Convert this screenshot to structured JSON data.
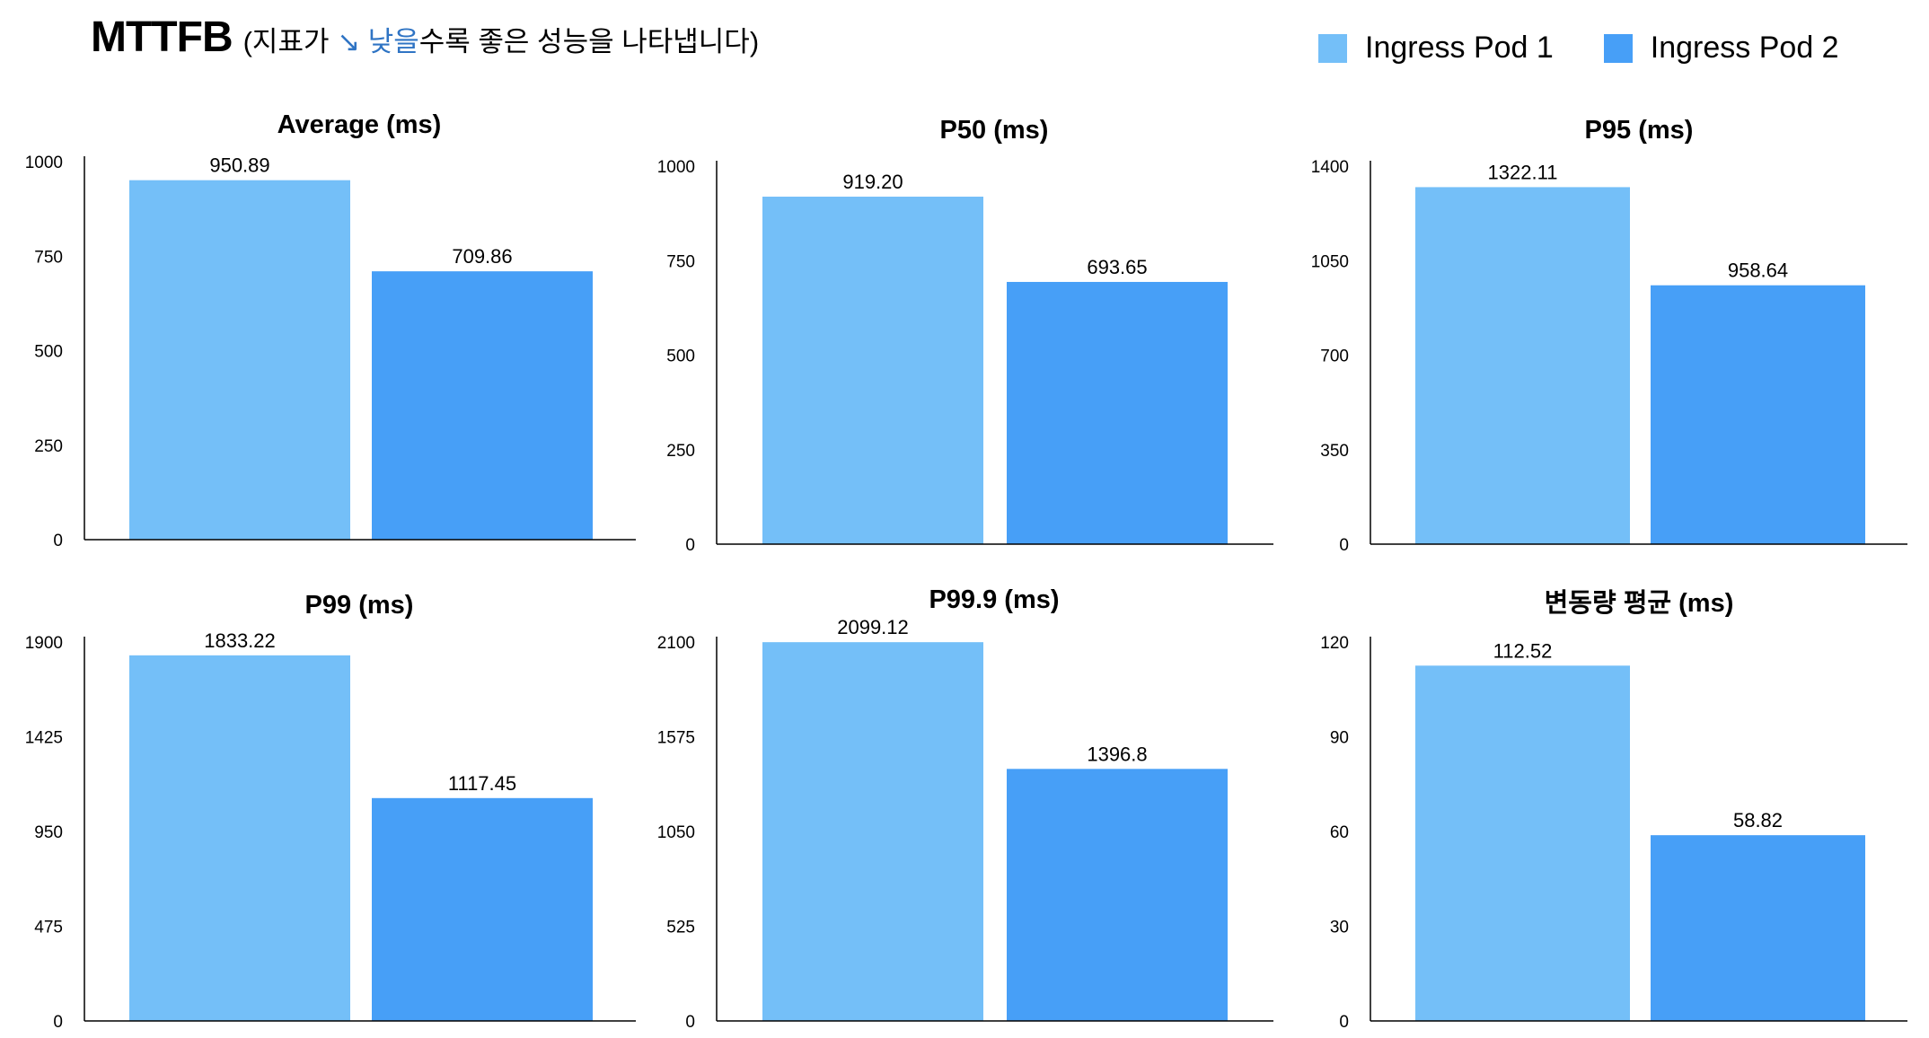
{
  "header": {
    "title": "MTTFB",
    "subtitle_before": "(지표가 ",
    "subtitle_accent": "↘ 낮을",
    "subtitle_after": "수록 좋은 성능을 나타냅니다)"
  },
  "legend": [
    {
      "label": "Ingress Pod 1",
      "color": "#74bff8"
    },
    {
      "label": "Ingress Pod 2",
      "color": "#479ff7"
    }
  ],
  "colors": {
    "pod1": "#74bff8",
    "pod2": "#479ff7",
    "accent": "#2f74c4"
  },
  "chart_data": [
    {
      "type": "bar",
      "title": "Average (ms)",
      "series": [
        {
          "name": "Ingress Pod 1",
          "values": [
            950.89
          ]
        },
        {
          "name": "Ingress Pod 2",
          "values": [
            709.86
          ]
        }
      ],
      "value_labels": [
        "950.89",
        "709.86"
      ],
      "yticks": [
        "0",
        "250",
        "500",
        "750",
        "1000"
      ],
      "ylim": [
        0,
        1000
      ]
    },
    {
      "type": "bar",
      "title": "P50 (ms)",
      "series": [
        {
          "name": "Ingress Pod 1",
          "values": [
            919.2
          ]
        },
        {
          "name": "Ingress Pod 2",
          "values": [
            693.65
          ]
        }
      ],
      "value_labels": [
        "919.20",
        "693.65"
      ],
      "yticks": [
        "0",
        "250",
        "500",
        "750",
        "1000"
      ],
      "ylim": [
        0,
        1000
      ]
    },
    {
      "type": "bar",
      "title": "P95 (ms)",
      "series": [
        {
          "name": "Ingress Pod 1",
          "values": [
            1322.11
          ]
        },
        {
          "name": "Ingress Pod 2",
          "values": [
            958.64
          ]
        }
      ],
      "value_labels": [
        "1322.11",
        "958.64"
      ],
      "yticks": [
        "0",
        "350",
        "700",
        "1050",
        "1400"
      ],
      "ylim": [
        0,
        1400
      ]
    },
    {
      "type": "bar",
      "title": "P99 (ms)",
      "series": [
        {
          "name": "Ingress Pod 1",
          "values": [
            1833.22
          ]
        },
        {
          "name": "Ingress Pod 2",
          "values": [
            1117.45
          ]
        }
      ],
      "value_labels": [
        "1833.22",
        "1117.45"
      ],
      "yticks": [
        "0",
        "475",
        "950",
        "1425",
        "1900"
      ],
      "ylim": [
        0,
        1900
      ]
    },
    {
      "type": "bar",
      "title": "P99.9 (ms)",
      "series": [
        {
          "name": "Ingress Pod 1",
          "values": [
            2099.12
          ]
        },
        {
          "name": "Ingress Pod 2",
          "values": [
            1396.8
          ]
        }
      ],
      "value_labels": [
        "2099.12",
        "1396.8"
      ],
      "yticks": [
        "0",
        "525",
        "1050",
        "1575",
        "2100"
      ],
      "ylim": [
        0,
        2100
      ]
    },
    {
      "type": "bar",
      "title": "변동량 평균 (ms)",
      "series": [
        {
          "name": "Ingress Pod 1",
          "values": [
            112.52
          ]
        },
        {
          "name": "Ingress Pod 2",
          "values": [
            58.82
          ]
        }
      ],
      "value_labels": [
        "112.52",
        "58.82"
      ],
      "yticks": [
        "0",
        "30",
        "60",
        "90",
        "120"
      ],
      "ylim": [
        0,
        120
      ]
    }
  ]
}
